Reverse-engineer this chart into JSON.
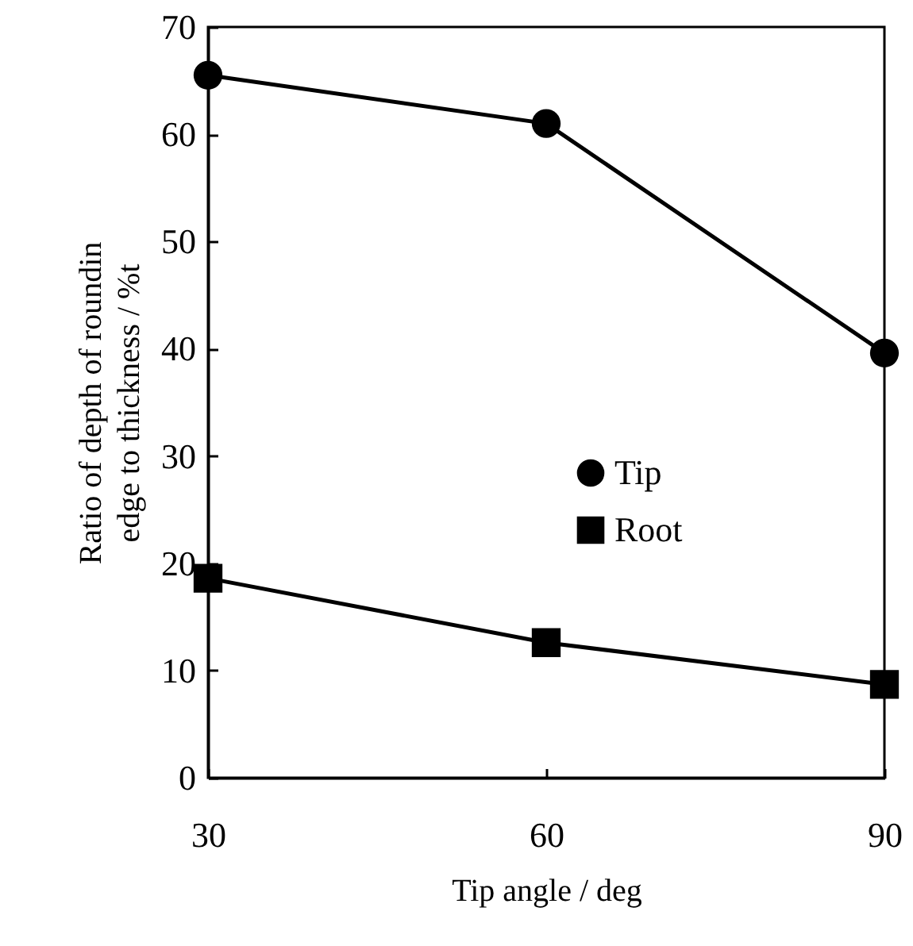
{
  "chart_data": {
    "type": "line",
    "xlabel": "Tip angle / deg",
    "ylabel": "Ratio of depth of roundin\nedge to thickness / %t",
    "x": [
      30,
      60,
      90
    ],
    "series": [
      {
        "name": "Tip",
        "color": "#000000",
        "marker": "circle",
        "values": [
          65.5,
          61.0,
          39.6
        ]
      },
      {
        "name": "Root",
        "color": "#000000",
        "marker": "square",
        "values": [
          18.6,
          12.6,
          8.7
        ]
      }
    ],
    "xlim": [
      30,
      90
    ],
    "xticks": [
      30,
      60,
      90
    ],
    "ylim": [
      0,
      70
    ],
    "yticks": [
      0,
      10,
      20,
      30,
      40,
      50,
      60,
      70
    ],
    "grid": false,
    "legend": "right",
    "line_style": "solid"
  }
}
